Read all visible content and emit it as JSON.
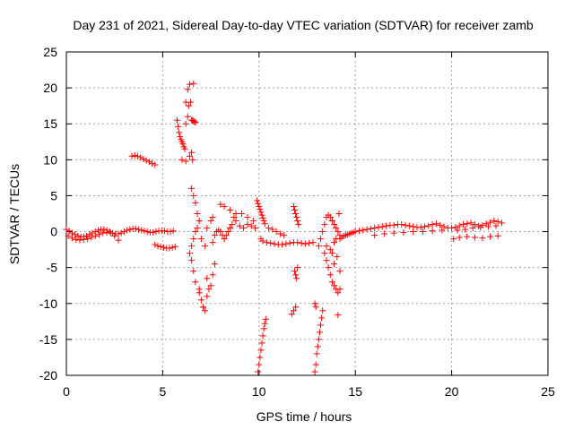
{
  "chart_data": {
    "type": "scatter",
    "title": "Day 231 of 2021, Sidereal Day-to-day VTEC variation (SDTVAR) for receiver zamb",
    "xlabel": "GPS time / hours",
    "ylabel": "SDTVAR / TECUs",
    "xlim": [
      0,
      25
    ],
    "ylim": [
      -20,
      25
    ],
    "xticks": [
      0,
      5,
      10,
      15,
      20,
      25
    ],
    "yticks": [
      -20,
      -15,
      -10,
      -5,
      0,
      5,
      10,
      15,
      20,
      25
    ],
    "xtick_labels": [
      "0",
      "5",
      "10",
      "15",
      "20",
      "25"
    ],
    "ytick_labels": [
      "-20",
      "-15",
      "-10",
      "-5",
      "0",
      "5",
      "10",
      "15",
      "20",
      "25"
    ],
    "grid": true,
    "marker": "plus",
    "color": "#ff0000",
    "series": [
      {
        "name": "SDTVAR",
        "x": [
          0.0,
          0.15,
          0.3,
          0.45,
          0.6,
          0.75,
          0.9,
          1.05,
          1.2,
          1.35,
          1.5,
          1.65,
          1.8,
          1.95,
          2.1,
          2.25,
          2.4,
          2.55,
          2.7,
          2.85,
          3.0,
          3.15,
          3.3,
          3.45,
          3.6,
          3.75,
          3.9,
          4.05,
          4.2,
          4.35,
          4.5,
          4.65,
          4.8,
          4.95,
          5.1,
          5.25,
          5.4,
          5.55,
          0.1,
          0.3,
          0.5,
          0.7,
          0.9,
          1.1,
          1.3,
          1.5,
          1.7,
          1.9,
          2.1,
          2.3,
          2.5,
          2.7,
          3.4,
          3.55,
          3.7,
          3.85,
          4.0,
          4.15,
          4.3,
          4.45,
          4.6,
          4.6,
          4.75,
          4.9,
          5.05,
          5.2,
          5.35,
          5.5,
          5.65,
          5.75,
          5.8,
          5.85,
          5.9,
          5.95,
          6.0,
          6.05,
          6.1,
          6.15,
          6.2,
          6.3,
          6.35,
          6.4,
          6.45,
          6.5,
          6.55,
          6.6,
          6.65,
          6.7,
          6.0,
          6.2,
          6.4,
          6.5,
          6.55,
          6.6,
          6.3,
          6.2,
          6.5,
          6.6,
          6.7,
          6.8,
          6.9,
          6.8,
          6.7,
          6.6,
          6.5,
          6.4,
          6.5,
          6.6,
          6.7,
          6.9,
          7.0,
          7.1,
          7.2,
          7.3,
          7.4,
          7.5,
          7.6,
          7.7,
          7.2,
          7.0,
          7.3,
          7.5,
          7.6,
          7.3,
          7.1,
          6.9,
          7.6,
          7.7,
          7.8,
          7.9,
          8.0,
          8.1,
          8.2,
          8.3,
          8.4,
          8.5,
          8.6,
          8.7,
          8.8,
          9.0,
          9.2,
          9.4,
          9.6,
          9.8,
          8.0,
          8.2,
          8.5,
          8.8,
          9.1,
          9.4,
          9.7,
          9.9,
          9.95,
          10.0,
          10.05,
          10.1,
          10.15,
          10.2,
          10.25,
          10.3,
          9.95,
          10.0,
          10.05,
          10.1,
          10.15,
          10.2,
          10.25,
          10.3,
          10.35,
          10.1,
          10.2,
          10.4,
          10.6,
          10.8,
          11.0,
          11.2,
          11.4,
          11.6,
          11.8,
          12.0,
          12.2,
          12.4,
          12.6,
          12.8,
          10.5,
          10.7,
          10.9,
          11.1,
          11.3,
          11.8,
          11.85,
          11.9,
          11.95,
          12.0,
          12.05,
          11.85,
          11.9,
          11.95,
          12.0,
          11.7,
          11.8,
          11.9,
          12.9,
          12.95,
          13.0,
          13.05,
          13.1,
          13.15,
          13.2,
          13.25,
          13.3,
          12.9,
          12.95,
          13.1,
          13.2,
          13.3,
          13.4,
          13.5,
          13.6,
          13.7,
          13.8,
          13.9,
          14.0,
          14.1,
          14.2,
          13.4,
          13.5,
          13.6,
          13.7,
          13.8,
          13.9,
          14.0,
          14.1,
          14.2,
          13.9,
          14.05,
          14.2,
          14.1,
          13.5,
          13.7,
          13.8,
          13.9,
          14.0,
          14.15,
          14.2,
          14.3,
          14.4,
          14.5,
          14.6,
          14.7,
          14.8,
          14.9,
          15.0,
          15.2,
          15.4,
          15.6,
          15.8,
          16.0,
          16.2,
          16.4,
          16.6,
          16.8,
          17.0,
          17.2,
          17.4,
          17.6,
          17.8,
          18.0,
          18.2,
          18.4,
          18.6,
          18.8,
          19.0,
          19.2,
          19.4,
          19.6,
          19.8,
          16.0,
          16.5,
          17.0,
          17.5,
          18.0,
          18.5,
          19.0,
          19.5,
          20.0,
          20.2,
          20.4,
          20.6,
          20.8,
          21.0,
          21.2,
          21.4,
          21.6,
          21.8,
          22.0,
          22.2,
          22.4,
          22.6,
          20.1,
          20.4,
          20.8,
          21.2,
          21.6,
          22.0,
          22.4,
          20.3,
          20.7,
          21.1,
          21.5,
          21.9,
          22.3
        ],
        "y": [
          0.3,
          0.1,
          -0.2,
          -0.4,
          -0.6,
          -0.7,
          -0.7,
          -0.6,
          -0.4,
          -0.2,
          0.0,
          0.2,
          0.3,
          0.3,
          0.2,
          0.0,
          -0.2,
          -0.3,
          -0.3,
          -0.2,
          0.0,
          0.2,
          0.3,
          0.4,
          0.4,
          0.3,
          0.2,
          0.1,
          0.0,
          -0.1,
          -0.1,
          0.0,
          0.1,
          0.1,
          0.1,
          0.0,
          0.0,
          0.1,
          -0.6,
          -0.9,
          -1.1,
          -1.2,
          -1.1,
          -1.0,
          -0.8,
          -0.6,
          -0.4,
          -0.2,
          -0.1,
          -0.2,
          -0.6,
          -1.2,
          10.5,
          10.6,
          10.5,
          10.3,
          10.1,
          9.9,
          9.7,
          9.5,
          9.3,
          -1.8,
          -2.0,
          -2.1,
          -2.2,
          -2.3,
          -2.3,
          -2.2,
          -2.1,
          15.5,
          14.6,
          13.8,
          13.2,
          12.8,
          12.5,
          12.2,
          11.8,
          11.5,
          15.0,
          16.0,
          17.5,
          20.5,
          18.0,
          15.5,
          15.5,
          15.4,
          15.3,
          15.2,
          10.0,
          9.8,
          10.5,
          11.0,
          10.0,
          20.6,
          19.8,
          18.0,
          6.0,
          5.0,
          4.0,
          2.5,
          1.5,
          0.5,
          0.0,
          -1.0,
          -2.0,
          -3.0,
          -4.0,
          -5.5,
          -7.0,
          -8.5,
          -9.5,
          -10.5,
          -11.0,
          -9.0,
          -8.0,
          -7.5,
          -6.0,
          -4.5,
          -2.0,
          -1.0,
          0.5,
          1.5,
          2.0,
          -6.5,
          -10.5,
          -8.0,
          -1.5,
          -0.5,
          0.0,
          0.2,
          0.0,
          -0.5,
          -1.0,
          -0.5,
          0.0,
          0.5,
          1.0,
          2.0,
          1.5,
          0.8,
          0.5,
          1.0,
          0.8,
          0.5,
          3.8,
          3.5,
          3.0,
          2.5,
          2.5,
          2.0,
          1.5,
          4.3,
          3.9,
          3.5,
          3.1,
          2.7,
          2.3,
          1.9,
          1.5,
          1.1,
          -19.5,
          -18.5,
          -17.5,
          -16.5,
          -15.5,
          -14.5,
          -13.5,
          -12.8,
          -12.2,
          -1.0,
          -1.3,
          -1.5,
          -1.6,
          -1.7,
          -1.8,
          -1.8,
          -1.7,
          -1.6,
          -1.5,
          -1.5,
          -1.6,
          -1.7,
          -1.6,
          -1.5,
          0.5,
          0.3,
          0.0,
          -0.3,
          -0.5,
          3.5,
          3.0,
          2.5,
          2.0,
          1.5,
          1.0,
          -5.5,
          -6.0,
          -6.5,
          -5.0,
          -11.5,
          -11.0,
          -10.5,
          -19.5,
          -18.5,
          -17.0,
          -16.0,
          -15.0,
          -14.0,
          -13.0,
          -12.0,
          -11.0,
          -10.0,
          -10.5,
          -2.0,
          -1.0,
          0.0,
          1.0,
          2.0,
          2.3,
          2.0,
          1.5,
          1.0,
          0.5,
          0.0,
          -0.5,
          -3.0,
          -4.0,
          -5.0,
          -6.0,
          -7.0,
          -7.5,
          -8.0,
          -8.5,
          -8.0,
          -4.5,
          -3.5,
          -5.5,
          -11.6,
          -2.0,
          -2.5,
          -3.0,
          -1.5,
          -1.0,
          2.5,
          -1.0,
          -0.8,
          -0.6,
          -0.5,
          -0.4,
          -0.3,
          -0.2,
          -0.1,
          0.0,
          0.1,
          0.2,
          0.3,
          0.4,
          0.5,
          0.6,
          0.7,
          0.8,
          0.9,
          0.9,
          1.0,
          1.0,
          0.9,
          0.8,
          0.7,
          0.6,
          0.6,
          0.7,
          0.8,
          1.0,
          1.1,
          0.9,
          0.7,
          0.5,
          -0.5,
          -0.3,
          -0.2,
          -0.1,
          0.0,
          0.0,
          0.1,
          0.2,
          0.5,
          0.6,
          0.8,
          1.0,
          1.1,
          1.2,
          1.0,
          0.8,
          0.9,
          1.1,
          1.3,
          1.5,
          1.4,
          1.2,
          -1.0,
          -0.8,
          -0.7,
          -0.8,
          -0.9,
          -0.7,
          -0.6,
          0.2,
          0.3,
          0.5,
          0.6,
          0.7,
          0.8
        ]
      }
    ]
  }
}
